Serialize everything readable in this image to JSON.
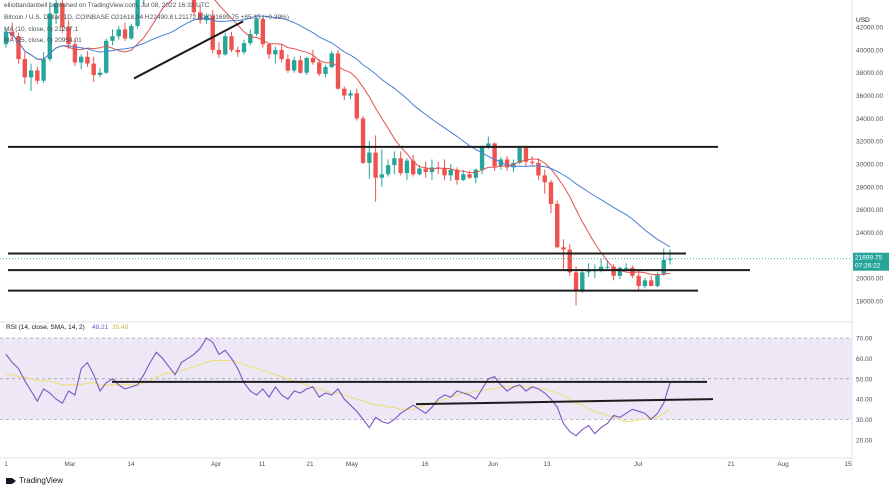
{
  "header": {
    "publisher": "elliottandanbell published on TradingView.com, Jul 08, 2022 16:33 UTC",
    "symbol_line": "Bitcoin / U.S. Dollar, 1D, COINBASE",
    "ohlc": "O21618.04 H22490.8 L21172.00 C21699.75",
    "change": "+85.15 (+0.39%)",
    "ma10": "MA (10, close, 0)  21207.1",
    "ma25": "MA (25, close, 0)  20954.01"
  },
  "footer": {
    "logo_text": "TradingView"
  },
  "colors": {
    "up": "#26a69a",
    "down": "#ef5350",
    "ma10": "#e05252",
    "ma25": "#4a7fd4",
    "rsi": "#7e57c2",
    "rsi_ma": "#ede07a",
    "rsi_band": "#ede7f6",
    "hline": "#1c1c1c",
    "price_tag": "#26a69a"
  },
  "chart_data": [
    {
      "type": "candlestick",
      "title": "Bitcoin / U.S. Dollar, 1D, COINBASE",
      "ylabel": "USD",
      "y_ticks": [
        18000,
        20000,
        22000,
        24000,
        26000,
        28000,
        30000,
        32000,
        34000,
        36000,
        38000,
        40000,
        42000
      ],
      "y_tick_labels": [
        "18000.00",
        "20000.00",
        "22000.00",
        "24000.00",
        "26000.00",
        "28000.00",
        "30000.00",
        "32000.00",
        "34000.00",
        "36000.00",
        "38000.00",
        "40000.00",
        "42000.00"
      ],
      "ylim": [
        16500,
        43500
      ],
      "x_tick_labels": [
        "Mar",
        "14",
        "Apr",
        "11",
        "21",
        "May",
        "16",
        "Jun",
        "13",
        "Jul",
        "21",
        "Aug",
        "15"
      ],
      "current_price": 21699.75,
      "current_price_label": "21699.75",
      "countdown_label": "07:26:22",
      "horizontal_levels": [
        31500,
        22150,
        20700,
        18900
      ],
      "trendline": {
        "from": [
          "Mar 14",
          37500
        ],
        "to": [
          "Apr 8",
          42500
        ]
      },
      "price_candles_approx": [
        [
          40500,
          41900,
          40200,
          41600
        ],
        [
          41600,
          42400,
          40800,
          41200
        ],
        [
          41200,
          41500,
          38800,
          39200
        ],
        [
          39200,
          39800,
          37000,
          37600
        ],
        [
          37600,
          38800,
          36400,
          38200
        ],
        [
          38200,
          38500,
          37000,
          37300
        ],
        [
          37300,
          39800,
          37100,
          39200
        ],
        [
          39200,
          44200,
          39000,
          43200
        ],
        [
          43200,
          44800,
          42300,
          44100
        ],
        [
          44100,
          44400,
          41500,
          42000
        ],
        [
          42000,
          42600,
          40100,
          40500
        ],
        [
          40500,
          41000,
          38600,
          38900
        ],
        [
          38900,
          39600,
          38300,
          39400
        ],
        [
          39400,
          39900,
          38500,
          38800
        ],
        [
          38800,
          39400,
          37200,
          37800
        ],
        [
          37800,
          38400,
          37600,
          38000
        ],
        [
          38000,
          41000,
          37900,
          40800
        ],
        [
          40800,
          41800,
          40400,
          41200
        ],
        [
          41200,
          42100,
          40900,
          41800
        ],
        [
          41800,
          42400,
          40800,
          41000
        ],
        [
          41000,
          42300,
          40900,
          42100
        ],
        [
          42100,
          44800,
          41900,
          44400
        ],
        [
          44400,
          45200,
          44000,
          44800
        ],
        [
          44800,
          47300,
          44600,
          47000
        ],
        [
          47000,
          47600,
          45800,
          46300
        ],
        [
          46300,
          47500,
          46100,
          47200
        ],
        [
          47200,
          47400,
          45200,
          45600
        ],
        [
          45600,
          46300,
          45100,
          45800
        ],
        [
          45800,
          47000,
          45600,
          46500
        ],
        [
          46500,
          46900,
          45500,
          45800
        ],
        [
          45800,
          46200,
          43000,
          43300
        ],
        [
          43300,
          43900,
          42300,
          42600
        ],
        [
          42600,
          43200,
          42300,
          43000
        ],
        [
          43000,
          43500,
          39700,
          40000
        ],
        [
          40000,
          40700,
          39300,
          39600
        ],
        [
          39600,
          41500,
          39500,
          41200
        ],
        [
          41200,
          41600,
          39800,
          40000
        ],
        [
          40000,
          40300,
          39400,
          39800
        ],
        [
          39800,
          40900,
          39600,
          40600
        ],
        [
          40600,
          41800,
          40400,
          41400
        ],
        [
          41400,
          42900,
          41200,
          42700
        ],
        [
          42700,
          42900,
          40200,
          40500
        ],
        [
          40500,
          40600,
          39200,
          39600
        ],
        [
          39600,
          40300,
          38800,
          40000
        ],
        [
          40000,
          40500,
          38900,
          39200
        ],
        [
          39200,
          39600,
          38000,
          38200
        ],
        [
          38200,
          39400,
          38000,
          39100
        ],
        [
          39100,
          39500,
          37900,
          38000
        ],
        [
          38000,
          39400,
          37800,
          39300
        ],
        [
          39300,
          40000,
          38700,
          38900
        ],
        [
          38900,
          39200,
          37700,
          37900
        ],
        [
          37900,
          38700,
          37600,
          38500
        ],
        [
          38500,
          39900,
          38400,
          39700
        ],
        [
          39700,
          40000,
          36500,
          36600
        ],
        [
          36600,
          36800,
          35600,
          36000
        ],
        [
          36000,
          36500,
          35700,
          36200
        ],
        [
          36200,
          36600,
          33800,
          34000
        ],
        [
          34000,
          34200,
          30000,
          30100
        ],
        [
          30100,
          32000,
          28700,
          31000
        ],
        [
          31000,
          32500,
          26700,
          28800
        ],
        [
          28800,
          31300,
          28000,
          29100
        ],
        [
          29100,
          30400,
          28900,
          29900
        ],
        [
          29900,
          31100,
          29100,
          30500
        ],
        [
          30500,
          31100,
          29000,
          29200
        ],
        [
          29200,
          30500,
          28600,
          30300
        ],
        [
          30300,
          30800,
          28900,
          29100
        ],
        [
          29100,
          29900,
          29000,
          29600
        ],
        [
          29600,
          30200,
          28800,
          29300
        ],
        [
          29300,
          30400,
          28600,
          29700
        ],
        [
          29700,
          30200,
          29100,
          29600
        ],
        [
          29600,
          30400,
          28600,
          29000
        ],
        [
          29000,
          30000,
          28500,
          29500
        ],
        [
          29500,
          29700,
          28200,
          28600
        ],
        [
          28600,
          29500,
          28500,
          29100
        ],
        [
          29100,
          29400,
          28700,
          28800
        ],
        [
          28800,
          29600,
          28300,
          29500
        ],
        [
          29500,
          31600,
          29100,
          31500
        ],
        [
          31500,
          32400,
          31300,
          31800
        ],
        [
          31800,
          31900,
          29400,
          29800
        ],
        [
          29800,
          30600,
          29500,
          30400
        ],
        [
          30400,
          30700,
          29400,
          29700
        ],
        [
          29700,
          30400,
          29300,
          30100
        ],
        [
          30100,
          31600,
          30000,
          31400
        ],
        [
          31400,
          31600,
          29800,
          30200
        ],
        [
          30200,
          30700,
          29900,
          30100
        ],
        [
          30100,
          30500,
          28600,
          29000
        ],
        [
          29000,
          29500,
          27400,
          28400
        ],
        [
          28400,
          28600,
          25700,
          26500
        ],
        [
          26500,
          26800,
          22600,
          22700
        ],
        [
          22700,
          23400,
          20800,
          22500
        ],
        [
          22500,
          23000,
          20200,
          20500
        ],
        [
          20500,
          21000,
          17600,
          18900
        ],
        [
          18900,
          20800,
          18700,
          20500
        ],
        [
          20500,
          21300,
          20100,
          20600
        ],
        [
          20600,
          21200,
          20000,
          20700
        ],
        [
          20700,
          21700,
          20500,
          21000
        ],
        [
          21000,
          21600,
          20800,
          21000
        ],
        [
          21000,
          21200,
          19800,
          20200
        ],
        [
          20200,
          21000,
          19900,
          20900
        ],
        [
          20900,
          21300,
          20600,
          20900
        ],
        [
          20900,
          21100,
          20000,
          20200
        ],
        [
          20200,
          20600,
          18900,
          19300
        ],
        [
          19300,
          20000,
          19100,
          19800
        ],
        [
          19800,
          20200,
          19400,
          19300
        ],
        [
          19300,
          20500,
          19200,
          20300
        ],
        [
          20300,
          22600,
          20200,
          21600
        ],
        [
          21600,
          22500,
          21200,
          21700
        ]
      ]
    },
    {
      "type": "line",
      "title": "RSI (14, close, SMA, 14, 2)",
      "header_text": "RSI (14, close, SMA, 14, 2)",
      "rsi_value_label": "48.21",
      "rsi_ma_label": "35.48",
      "y_ticks": [
        20,
        30,
        40,
        50,
        60,
        70
      ],
      "y_tick_labels": [
        "20.00",
        "30.00",
        "40.00",
        "50.00",
        "60.00",
        "70.00"
      ],
      "ylim": [
        13,
        73
      ],
      "band": [
        30,
        70
      ],
      "midline": 50,
      "horizontal_levels": [
        48.5
      ],
      "trendline": {
        "from": [
          "May 13",
          37.5
        ],
        "to": [
          "Jul 18",
          40.0
        ]
      },
      "series": [
        {
          "values": [
            62,
            58,
            55,
            49,
            44,
            39,
            45,
            43,
            40,
            38,
            44,
            42,
            55,
            58,
            52,
            44,
            48,
            50,
            47,
            45,
            46,
            47,
            52,
            58,
            63,
            60,
            56,
            52,
            58,
            60,
            62,
            65,
            70,
            68,
            62,
            64,
            60,
            55,
            48,
            44,
            42,
            45,
            41,
            46,
            42,
            40,
            44,
            43,
            45,
            46,
            41,
            43,
            42,
            45,
            40,
            37,
            34,
            30,
            26,
            31,
            29,
            28,
            30,
            33,
            35,
            37,
            35,
            33,
            36,
            40,
            42,
            41,
            44,
            43,
            42,
            40,
            45,
            50,
            51,
            47,
            44,
            46,
            47,
            44,
            46,
            45,
            43,
            40,
            36,
            28,
            24,
            22,
            25,
            27,
            23,
            26,
            28,
            32,
            31,
            33,
            35,
            34,
            33,
            30,
            33,
            38,
            48
          ]
        },
        {
          "values": [
            52,
            52,
            51,
            51,
            50,
            49,
            49,
            49,
            48,
            47,
            47,
            47,
            47,
            48,
            48,
            47,
            47,
            47,
            47,
            47,
            47,
            47,
            48,
            49,
            51,
            52,
            53,
            53,
            54,
            55,
            56,
            57,
            58,
            59,
            59,
            59,
            59,
            58,
            57,
            56,
            55,
            54,
            53,
            52,
            51,
            50,
            49,
            48,
            47,
            46,
            45,
            44,
            43,
            43,
            42,
            41,
            40,
            39,
            38,
            37,
            37,
            36,
            36,
            35,
            35,
            35,
            36,
            37,
            38,
            39,
            40,
            41,
            42,
            43,
            43,
            44,
            44,
            45,
            45,
            46,
            46,
            46,
            46,
            46,
            46,
            45,
            45,
            44,
            43,
            42,
            40,
            38,
            37,
            35,
            34,
            33,
            32,
            31,
            30,
            29,
            29,
            30,
            30,
            31,
            31,
            33,
            35
          ]
        }
      ]
    }
  ]
}
